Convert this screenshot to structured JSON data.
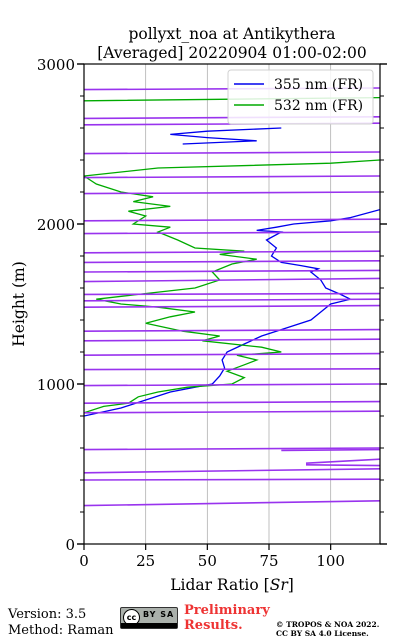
{
  "chart_data": {
    "type": "line",
    "title": [
      "pollyxt_noa at Antikythera",
      "[Averaged] 20220904 01:00-02:00"
    ],
    "xlabel": "Lidar Ratio [Sr]",
    "ylabel": "Height (m)",
    "xlim": [
      0,
      120
    ],
    "ylim": [
      0,
      3000
    ],
    "xticks": [
      0,
      25,
      50,
      75,
      100
    ],
    "xtick_labels": [
      "0",
      "25",
      "50",
      "75",
      "100"
    ],
    "yticks": [
      0,
      1000,
      2000,
      3000
    ],
    "ytick_labels": [
      "0",
      "1000",
      "2000",
      "3000"
    ],
    "grid": "x only",
    "legend_position": "top-right",
    "series": [
      {
        "name": "355 nm (FR)",
        "color": "#0000ee",
        "points": [
          [
            0,
            800
          ],
          [
            15,
            850
          ],
          [
            25,
            900
          ],
          [
            35,
            950
          ],
          [
            45,
            980
          ],
          [
            52,
            1000
          ],
          [
            55,
            1050
          ],
          [
            57,
            1100
          ],
          [
            56,
            1150
          ],
          [
            58,
            1200
          ],
          [
            65,
            1250
          ],
          [
            72,
            1300
          ],
          [
            82,
            1350
          ],
          [
            92,
            1400
          ],
          [
            96,
            1450
          ],
          [
            100,
            1500
          ],
          [
            108,
            1530
          ],
          [
            104,
            1560
          ],
          [
            98,
            1600
          ],
          [
            96,
            1650
          ],
          [
            92,
            1700
          ],
          [
            95,
            1720
          ],
          [
            88,
            1740
          ],
          [
            80,
            1760
          ],
          [
            76,
            1800
          ],
          [
            78,
            1850
          ],
          [
            74,
            1900
          ],
          [
            80,
            1950
          ],
          [
            70,
            1960
          ],
          [
            78,
            1980
          ],
          [
            85,
            2000
          ],
          [
            100,
            2020
          ],
          [
            108,
            2040
          ],
          [
            120,
            2090
          ],
          null,
          [
            40,
            2500
          ],
          [
            70,
            2520
          ],
          [
            50,
            2540
          ],
          [
            35,
            2560
          ],
          [
            50,
            2580
          ],
          [
            80,
            2600
          ]
        ]
      },
      {
        "name": "532 nm (FR)",
        "color": "#00aa00",
        "points": [
          [
            0,
            820
          ],
          [
            8,
            860
          ],
          [
            18,
            880
          ],
          [
            22,
            920
          ],
          [
            30,
            950
          ],
          [
            42,
            980
          ],
          [
            60,
            1000
          ],
          [
            65,
            1040
          ],
          [
            58,
            1080
          ],
          [
            65,
            1120
          ],
          [
            70,
            1150
          ],
          [
            62,
            1180
          ],
          [
            80,
            1200
          ],
          [
            72,
            1230
          ],
          [
            48,
            1270
          ],
          [
            55,
            1300
          ],
          [
            40,
            1330
          ],
          [
            25,
            1380
          ],
          [
            35,
            1420
          ],
          [
            45,
            1450
          ],
          [
            30,
            1480
          ],
          [
            15,
            1500
          ],
          [
            5,
            1530
          ],
          [
            22,
            1560
          ],
          [
            45,
            1600
          ],
          [
            55,
            1650
          ],
          [
            52,
            1700
          ],
          [
            60,
            1750
          ],
          [
            70,
            1780
          ],
          [
            55,
            1810
          ],
          [
            65,
            1830
          ],
          [
            45,
            1850
          ],
          [
            38,
            1900
          ],
          [
            30,
            1950
          ],
          [
            35,
            1980
          ],
          [
            20,
            2000
          ],
          [
            25,
            2050
          ],
          [
            18,
            2080
          ],
          [
            35,
            2110
          ],
          [
            20,
            2140
          ],
          [
            28,
            2170
          ],
          [
            15,
            2200
          ],
          [
            5,
            2250
          ],
          [
            0,
            2300
          ],
          [
            30,
            2350
          ],
          [
            100,
            2380
          ],
          [
            120,
            2400
          ],
          null,
          [
            0,
            2770
          ],
          [
            120,
            2790
          ]
        ]
      },
      {
        "name": "",
        "color": "#9933ee",
        "segments": [
          [
            [
              0,
              240
            ],
            [
              120,
              270
            ]
          ],
          [
            [
              0,
              400
            ],
            [
              120,
              405
            ]
          ],
          [
            [
              0,
              445
            ],
            [
              120,
              470
            ]
          ],
          [
            [
              120,
              490
            ],
            [
              90,
              495
            ]
          ],
          [
            [
              90,
              505
            ],
            [
              120,
              530
            ]
          ],
          [
            [
              80,
              585
            ],
            [
              120,
              590
            ]
          ],
          [
            [
              0,
              590
            ],
            [
              120,
              600
            ]
          ],
          [
            [
              0,
              820
            ],
            [
              120,
              830
            ]
          ],
          [
            [
              0,
              880
            ],
            [
              120,
              890
            ]
          ],
          [
            [
              0,
              990
            ],
            [
              120,
              1000
            ]
          ],
          [
            [
              0,
              1090
            ],
            [
              120,
              1095
            ]
          ],
          [
            [
              0,
              1180
            ],
            [
              120,
              1190
            ]
          ],
          [
            [
              0,
              1270
            ],
            [
              120,
              1280
            ]
          ],
          [
            [
              0,
              1330
            ],
            [
              120,
              1340
            ]
          ],
          [
            [
              0,
              1480
            ],
            [
              120,
              1490
            ]
          ],
          [
            [
              0,
              1520
            ],
            [
              120,
              1530
            ]
          ],
          [
            [
              0,
              1560
            ],
            [
              120,
              1565
            ]
          ],
          [
            [
              0,
              1640
            ],
            [
              120,
              1660
            ]
          ],
          [
            [
              0,
              1700
            ],
            [
              120,
              1710
            ]
          ],
          [
            [
              0,
              1760
            ],
            [
              120,
              1770
            ]
          ],
          [
            [
              0,
              1820
            ],
            [
              120,
              1830
            ]
          ],
          [
            [
              0,
              1940
            ],
            [
              120,
              1950
            ]
          ],
          [
            [
              0,
              2020
            ],
            [
              120,
              2030
            ]
          ],
          [
            [
              0,
              2190
            ],
            [
              120,
              2200
            ]
          ],
          [
            [
              0,
              2290
            ],
            [
              120,
              2300
            ]
          ],
          [
            [
              0,
              2440
            ],
            [
              120,
              2450
            ]
          ],
          [
            [
              0,
              2620
            ],
            [
              120,
              2630
            ]
          ],
          [
            [
              0,
              2660
            ],
            [
              120,
              2670
            ]
          ],
          [
            [
              0,
              2840
            ],
            [
              120,
              2850
            ]
          ]
        ]
      }
    ]
  },
  "footer": {
    "version_line": "Version: 3.5",
    "method_line": "Method: Raman",
    "cc_badge_text": "cc",
    "cc_by_text": "BY SA",
    "preliminary_line1": "Preliminary",
    "preliminary_line2": "Results.",
    "copyright_line1": "© TROPOS & NOA 2022.",
    "copyright_line2": "CC BY SA 4.0 License."
  }
}
